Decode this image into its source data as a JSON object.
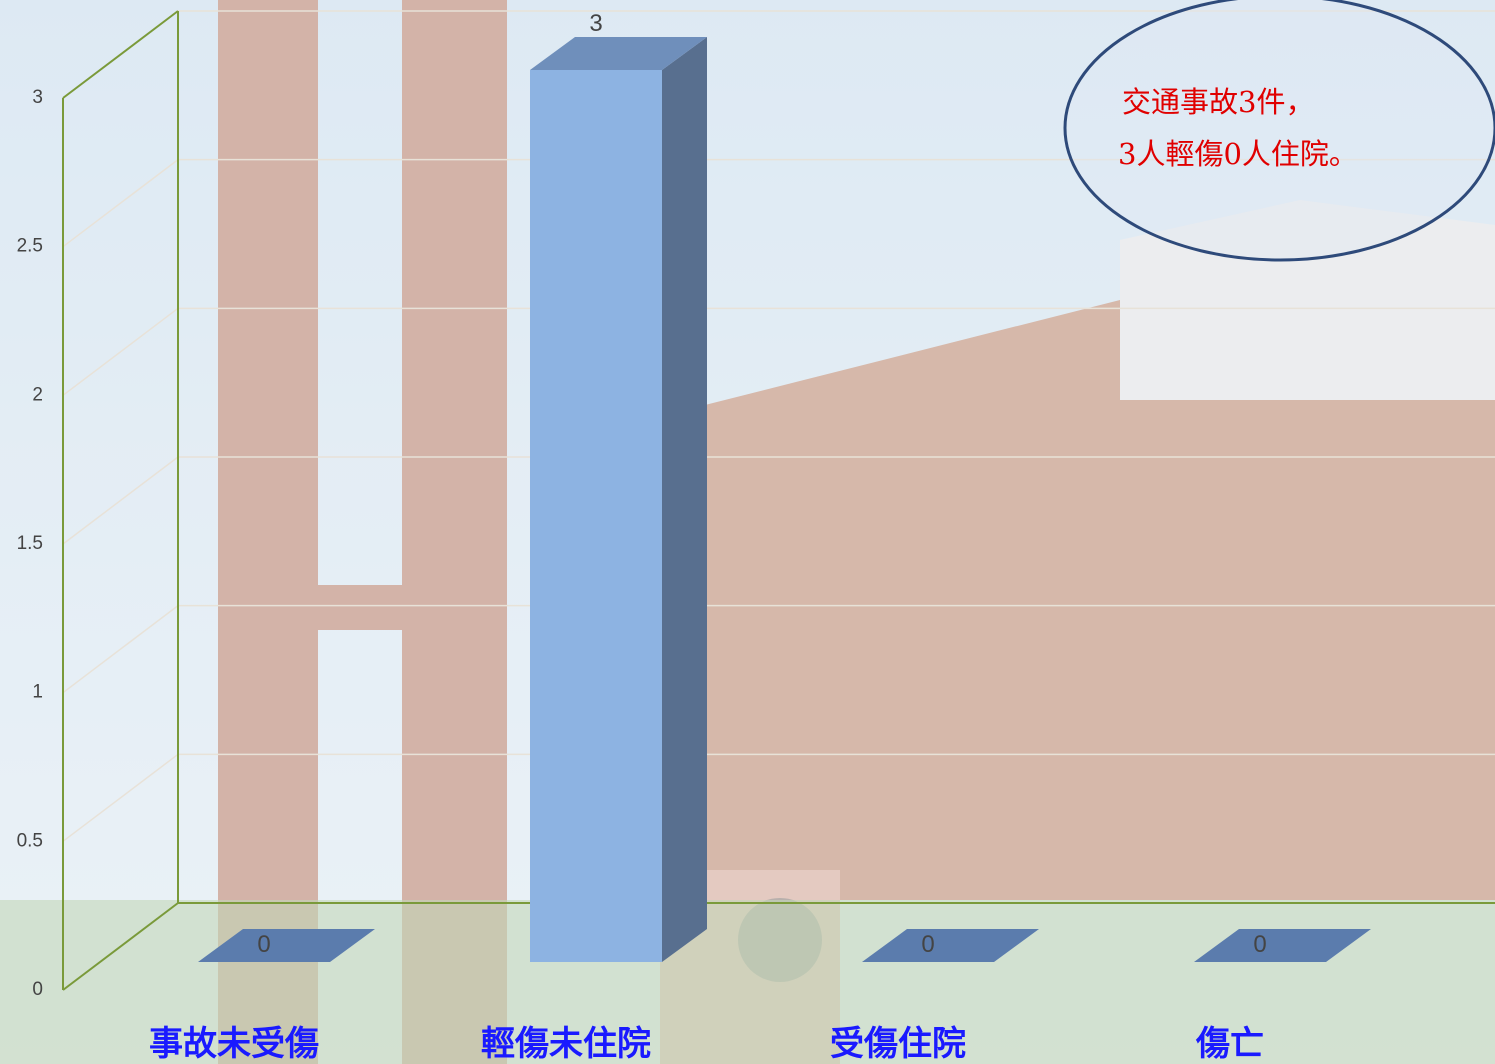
{
  "chart_data": {
    "type": "bar3d",
    "categories": [
      "事故未受傷",
      "輕傷未住院",
      "受傷住院",
      "傷亡"
    ],
    "values": [
      0,
      3,
      0,
      0
    ],
    "color": "#8db3e2",
    "ylim": [
      0,
      3
    ],
    "yticks": [
      0,
      0.5,
      1,
      1.5,
      2,
      2.5,
      3
    ],
    "grid": true,
    "annotation": [
      "交通事故3件，",
      "3人輕傷0人住院。"
    ]
  }
}
